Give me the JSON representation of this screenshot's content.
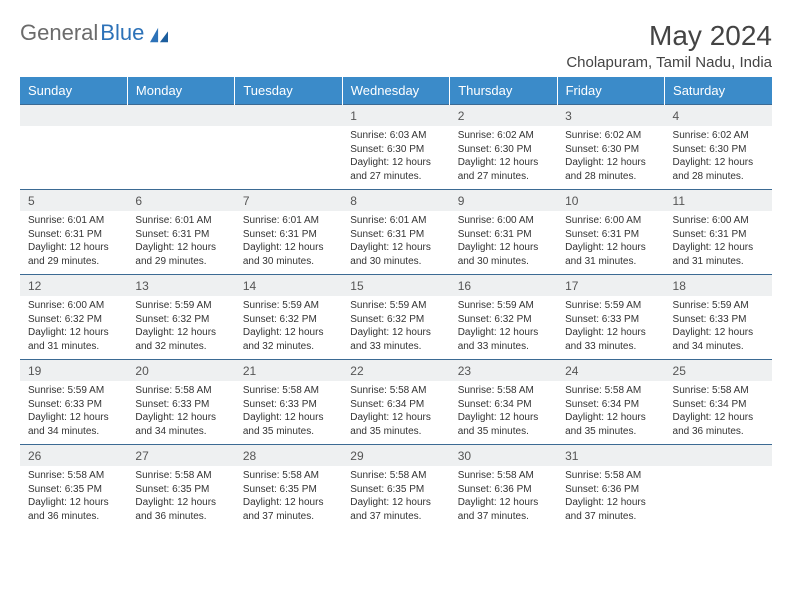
{
  "brand": {
    "part1": "General",
    "part2": "Blue"
  },
  "title": "May 2024",
  "location": "Cholapuram, Tamil Nadu, India",
  "colors": {
    "header_bg": "#3b8bc9",
    "header_text": "#ffffff",
    "rule": "#3b6a93",
    "daynum_bg": "#eef0f1",
    "body_text": "#333333",
    "brand_gray": "#6b6b6b",
    "brand_blue": "#2d72b8"
  },
  "day_names": [
    "Sunday",
    "Monday",
    "Tuesday",
    "Wednesday",
    "Thursday",
    "Friday",
    "Saturday"
  ],
  "weeks": [
    [
      null,
      null,
      null,
      {
        "n": "1",
        "sr": "Sunrise: 6:03 AM",
        "ss": "Sunset: 6:30 PM",
        "d1": "Daylight: 12 hours",
        "d2": "and 27 minutes."
      },
      {
        "n": "2",
        "sr": "Sunrise: 6:02 AM",
        "ss": "Sunset: 6:30 PM",
        "d1": "Daylight: 12 hours",
        "d2": "and 27 minutes."
      },
      {
        "n": "3",
        "sr": "Sunrise: 6:02 AM",
        "ss": "Sunset: 6:30 PM",
        "d1": "Daylight: 12 hours",
        "d2": "and 28 minutes."
      },
      {
        "n": "4",
        "sr": "Sunrise: 6:02 AM",
        "ss": "Sunset: 6:30 PM",
        "d1": "Daylight: 12 hours",
        "d2": "and 28 minutes."
      }
    ],
    [
      {
        "n": "5",
        "sr": "Sunrise: 6:01 AM",
        "ss": "Sunset: 6:31 PM",
        "d1": "Daylight: 12 hours",
        "d2": "and 29 minutes."
      },
      {
        "n": "6",
        "sr": "Sunrise: 6:01 AM",
        "ss": "Sunset: 6:31 PM",
        "d1": "Daylight: 12 hours",
        "d2": "and 29 minutes."
      },
      {
        "n": "7",
        "sr": "Sunrise: 6:01 AM",
        "ss": "Sunset: 6:31 PM",
        "d1": "Daylight: 12 hours",
        "d2": "and 30 minutes."
      },
      {
        "n": "8",
        "sr": "Sunrise: 6:01 AM",
        "ss": "Sunset: 6:31 PM",
        "d1": "Daylight: 12 hours",
        "d2": "and 30 minutes."
      },
      {
        "n": "9",
        "sr": "Sunrise: 6:00 AM",
        "ss": "Sunset: 6:31 PM",
        "d1": "Daylight: 12 hours",
        "d2": "and 30 minutes."
      },
      {
        "n": "10",
        "sr": "Sunrise: 6:00 AM",
        "ss": "Sunset: 6:31 PM",
        "d1": "Daylight: 12 hours",
        "d2": "and 31 minutes."
      },
      {
        "n": "11",
        "sr": "Sunrise: 6:00 AM",
        "ss": "Sunset: 6:31 PM",
        "d1": "Daylight: 12 hours",
        "d2": "and 31 minutes."
      }
    ],
    [
      {
        "n": "12",
        "sr": "Sunrise: 6:00 AM",
        "ss": "Sunset: 6:32 PM",
        "d1": "Daylight: 12 hours",
        "d2": "and 31 minutes."
      },
      {
        "n": "13",
        "sr": "Sunrise: 5:59 AM",
        "ss": "Sunset: 6:32 PM",
        "d1": "Daylight: 12 hours",
        "d2": "and 32 minutes."
      },
      {
        "n": "14",
        "sr": "Sunrise: 5:59 AM",
        "ss": "Sunset: 6:32 PM",
        "d1": "Daylight: 12 hours",
        "d2": "and 32 minutes."
      },
      {
        "n": "15",
        "sr": "Sunrise: 5:59 AM",
        "ss": "Sunset: 6:32 PM",
        "d1": "Daylight: 12 hours",
        "d2": "and 33 minutes."
      },
      {
        "n": "16",
        "sr": "Sunrise: 5:59 AM",
        "ss": "Sunset: 6:32 PM",
        "d1": "Daylight: 12 hours",
        "d2": "and 33 minutes."
      },
      {
        "n": "17",
        "sr": "Sunrise: 5:59 AM",
        "ss": "Sunset: 6:33 PM",
        "d1": "Daylight: 12 hours",
        "d2": "and 33 minutes."
      },
      {
        "n": "18",
        "sr": "Sunrise: 5:59 AM",
        "ss": "Sunset: 6:33 PM",
        "d1": "Daylight: 12 hours",
        "d2": "and 34 minutes."
      }
    ],
    [
      {
        "n": "19",
        "sr": "Sunrise: 5:59 AM",
        "ss": "Sunset: 6:33 PM",
        "d1": "Daylight: 12 hours",
        "d2": "and 34 minutes."
      },
      {
        "n": "20",
        "sr": "Sunrise: 5:58 AM",
        "ss": "Sunset: 6:33 PM",
        "d1": "Daylight: 12 hours",
        "d2": "and 34 minutes."
      },
      {
        "n": "21",
        "sr": "Sunrise: 5:58 AM",
        "ss": "Sunset: 6:33 PM",
        "d1": "Daylight: 12 hours",
        "d2": "and 35 minutes."
      },
      {
        "n": "22",
        "sr": "Sunrise: 5:58 AM",
        "ss": "Sunset: 6:34 PM",
        "d1": "Daylight: 12 hours",
        "d2": "and 35 minutes."
      },
      {
        "n": "23",
        "sr": "Sunrise: 5:58 AM",
        "ss": "Sunset: 6:34 PM",
        "d1": "Daylight: 12 hours",
        "d2": "and 35 minutes."
      },
      {
        "n": "24",
        "sr": "Sunrise: 5:58 AM",
        "ss": "Sunset: 6:34 PM",
        "d1": "Daylight: 12 hours",
        "d2": "and 35 minutes."
      },
      {
        "n": "25",
        "sr": "Sunrise: 5:58 AM",
        "ss": "Sunset: 6:34 PM",
        "d1": "Daylight: 12 hours",
        "d2": "and 36 minutes."
      }
    ],
    [
      {
        "n": "26",
        "sr": "Sunrise: 5:58 AM",
        "ss": "Sunset: 6:35 PM",
        "d1": "Daylight: 12 hours",
        "d2": "and 36 minutes."
      },
      {
        "n": "27",
        "sr": "Sunrise: 5:58 AM",
        "ss": "Sunset: 6:35 PM",
        "d1": "Daylight: 12 hours",
        "d2": "and 36 minutes."
      },
      {
        "n": "28",
        "sr": "Sunrise: 5:58 AM",
        "ss": "Sunset: 6:35 PM",
        "d1": "Daylight: 12 hours",
        "d2": "and 37 minutes."
      },
      {
        "n": "29",
        "sr": "Sunrise: 5:58 AM",
        "ss": "Sunset: 6:35 PM",
        "d1": "Daylight: 12 hours",
        "d2": "and 37 minutes."
      },
      {
        "n": "30",
        "sr": "Sunrise: 5:58 AM",
        "ss": "Sunset: 6:36 PM",
        "d1": "Daylight: 12 hours",
        "d2": "and 37 minutes."
      },
      {
        "n": "31",
        "sr": "Sunrise: 5:58 AM",
        "ss": "Sunset: 6:36 PM",
        "d1": "Daylight: 12 hours",
        "d2": "and 37 minutes."
      },
      null
    ]
  ]
}
